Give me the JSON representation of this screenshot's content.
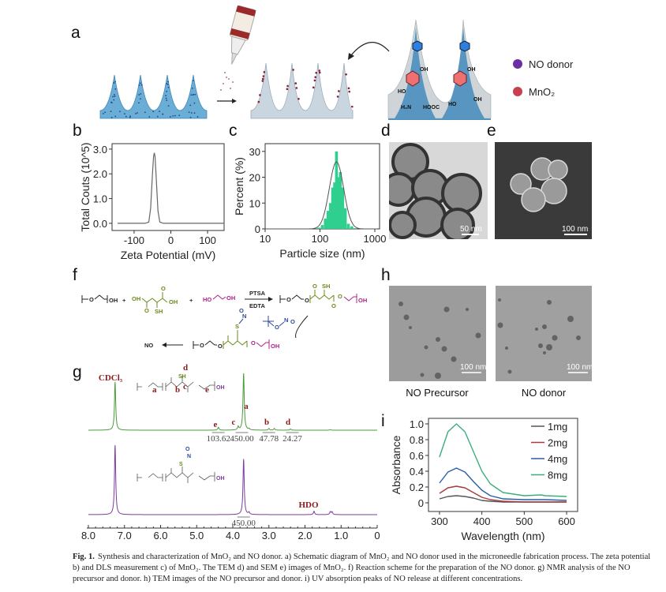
{
  "panel_labels": {
    "a": "a",
    "b": "b",
    "c": "c",
    "d": "d",
    "e": "e",
    "f": "f",
    "g": "g",
    "h": "h",
    "i": "i"
  },
  "panel_a": {
    "legend": [
      {
        "label": "NO donor",
        "color": "#6b2fa3"
      },
      {
        "label": "MnO₂",
        "color": "#c8404e"
      }
    ],
    "chem_labels": {
      "oh1": "OH",
      "oh2": "OH",
      "ho1": "HO",
      "hooc": "HOOC",
      "h2n": "H₂N",
      "ho2": "HO",
      "oh3": "OH"
    }
  },
  "panel_d": {
    "scale_bar": "50 nm"
  },
  "panel_e": {
    "scale_bar": "100 nm"
  },
  "panel_f": {
    "reagent_top": "PTSA",
    "reagent_bottom": "EDTA",
    "oh": "OH",
    "ho": "HO",
    "sh": "SH",
    "o": "O",
    "s": "S",
    "n": "N",
    "plus": "+",
    "product": "NO"
  },
  "panel_h": {
    "images": [
      {
        "caption": "NO Precursor",
        "scale_bar": "100 nm"
      },
      {
        "caption": "NO donor",
        "scale_bar": "100 nm"
      }
    ]
  },
  "chart_data": [
    {
      "id": "b",
      "type": "line",
      "xlabel": "Zeta Potential (mV)",
      "ylabel": "Total Couts (10^5)",
      "xlim": [
        -160,
        145
      ],
      "ylim": [
        -0.29,
        3.22
      ],
      "xticks": [
        -100,
        0,
        100
      ],
      "yticks": [
        0.0,
        1.0,
        2.0,
        3.0
      ],
      "ytick_labels": [
        "0.0",
        "1.0",
        "2.0",
        "3.0"
      ],
      "series": [
        {
          "x": [
            -145,
            -70,
            -60,
            -55,
            -50,
            -47,
            -45,
            -43,
            -40,
            -35,
            -30,
            -20,
            145
          ],
          "y": [
            0,
            0,
            0.05,
            0.6,
            2.0,
            2.7,
            2.85,
            2.7,
            1.9,
            0.5,
            0.05,
            0,
            0
          ]
        }
      ],
      "color": "#666666",
      "grid": false
    },
    {
      "id": "c",
      "type": "bar",
      "xlabel": "Particle size (nm)",
      "ylabel": "Percent (%)",
      "xscale": "log",
      "xlim": [
        10,
        1220
      ],
      "ylim": [
        0,
        33
      ],
      "xticks": [
        10,
        100,
        1000
      ],
      "yticks": [
        0,
        10,
        20,
        30
      ],
      "bins_nm": [
        95,
        110,
        125,
        140,
        155,
        170,
        185,
        200,
        215,
        235,
        260,
        290,
        330,
        380,
        440
      ],
      "values": [
        0.5,
        1.5,
        4,
        7,
        10,
        16,
        18,
        30,
        20,
        22,
        16,
        8,
        2,
        1,
        0.3
      ],
      "fit": {
        "type": "lognormal",
        "center_nm": 200,
        "peak": 26
      },
      "bar_color": "#2ecf8f",
      "fit_color": "#555555",
      "grid": false
    },
    {
      "id": "g",
      "type": "line",
      "xlabel": "",
      "xlim": [
        8.0,
        0
      ],
      "xticks": [
        8.0,
        7.0,
        6.0,
        5.0,
        4.0,
        3.0,
        2.0,
        1.0,
        0
      ],
      "xtick_labels": [
        "8.0",
        "7.0",
        "6.0",
        "5.0",
        "4.0",
        "3.0",
        "2.0",
        "1.0",
        "0"
      ],
      "series": [
        {
          "color": "#4c9a3a",
          "peaks_ppm": [
            [
              7.26,
              0.85
            ],
            [
              4.4,
              0.05
            ],
            [
              3.85,
              0.06
            ],
            [
              3.7,
              1.0
            ],
            [
              3.55,
              0.02
            ],
            [
              3.0,
              0.03
            ],
            [
              2.85,
              0.03
            ],
            [
              2.4,
              0.02
            ],
            [
              1.3,
              0.01
            ]
          ],
          "labels": [
            {
              "ppm": 7.26,
              "text": "CDCl₃"
            },
            {
              "ppm": 4.4,
              "text": "e"
            },
            {
              "ppm": 3.85,
              "text": "c"
            },
            {
              "ppm": 3.65,
              "text": "a"
            },
            {
              "ppm": 2.95,
              "text": "b"
            },
            {
              "ppm": 2.35,
              "text": "d"
            }
          ],
          "integrals": [
            {
              "ppm": 4.4,
              "value": "103.62"
            },
            {
              "ppm": 3.75,
              "value": "450.00"
            },
            {
              "ppm": 3.0,
              "value": "47.78"
            },
            {
              "ppm": 2.35,
              "value": "24.27"
            }
          ],
          "structure_labels": {
            "a": "a",
            "b": "b",
            "c": "c",
            "d": "d",
            "e": "e",
            "sh": "SH",
            "oh": "OH"
          }
        },
        {
          "color": "#7b3c9e",
          "peaks_ppm": [
            [
              7.26,
              1.0
            ],
            [
              3.7,
              0.8
            ],
            [
              3.55,
              0.03
            ],
            [
              1.75,
              0.05
            ],
            [
              1.3,
              0.04
            ],
            [
              1.25,
              0.04
            ]
          ],
          "labels": [
            {
              "ppm": 1.75,
              "text": "HDO"
            }
          ],
          "integrals": [
            {
              "ppm": 3.7,
              "value": "450.00"
            }
          ],
          "structure_labels": {
            "s": "S",
            "n": "N",
            "o": "O",
            "oh": "OH"
          }
        }
      ]
    },
    {
      "id": "i",
      "type": "line",
      "xlabel": "Wavelength (nm)",
      "ylabel": "Absorbance",
      "xlim": [
        274,
        626
      ],
      "ylim": [
        -0.11,
        1.07
      ],
      "xticks": [
        300,
        400,
        500,
        600
      ],
      "yticks": [
        0,
        0.2,
        0.4,
        0.6,
        0.8,
        1.0
      ],
      "ytick_labels": [
        "0",
        "0.2",
        "0.4",
        "0.6",
        "0.8",
        "1.0"
      ],
      "legend": "top-right",
      "x": [
        300,
        320,
        340,
        360,
        380,
        400,
        420,
        450,
        500,
        540,
        550,
        600
      ],
      "series": [
        {
          "name": "1mg",
          "color": "#555555",
          "values": [
            0.05,
            0.08,
            0.09,
            0.08,
            0.06,
            0.03,
            0.02,
            0.01,
            0.01,
            0.01,
            0.01,
            0.01
          ]
        },
        {
          "name": "2mg",
          "color": "#a83a3a",
          "values": [
            0.12,
            0.19,
            0.21,
            0.19,
            0.13,
            0.07,
            0.04,
            0.02,
            0.01,
            0.01,
            0.01,
            0.01
          ]
        },
        {
          "name": "4mg",
          "color": "#2a5ea8",
          "values": [
            0.25,
            0.39,
            0.44,
            0.39,
            0.27,
            0.16,
            0.09,
            0.05,
            0.04,
            0.04,
            0.04,
            0.03
          ]
        },
        {
          "name": "8mg",
          "color": "#3cae7a",
          "values": [
            0.58,
            0.9,
            1.0,
            0.9,
            0.65,
            0.4,
            0.24,
            0.13,
            0.09,
            0.1,
            0.09,
            0.08
          ]
        }
      ],
      "grid": false
    }
  ],
  "caption": {
    "label": "Fig. 1.",
    "text": "Synthesis and characterization of MnO₂ and NO donor. a) Schematic diagram of MnO₂ and NO donor used in the microneedle fabrication process. The zeta potential b) and DLS measurement c) of MnO₂. The TEM d) and SEM e) images of MnO₂. f) Reaction scheme for the preparation of the NO donor. g) NMR analysis of the NO precursor and donor. h) TEM images of the NO precursor and donor. i) UV absorption peaks of NO release at different concentrations."
  }
}
